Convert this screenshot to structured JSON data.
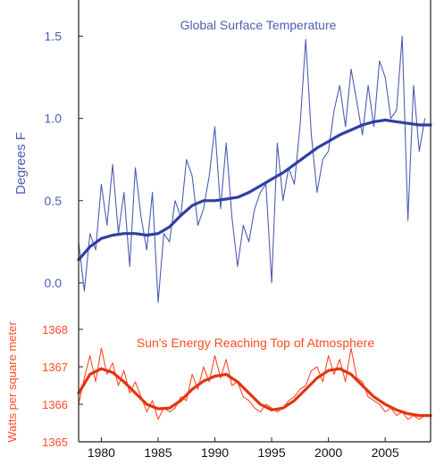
{
  "colors": {
    "temperature": "#4d5db3",
    "temperature_smooth": "#2f3fa2",
    "solar": "#ff4a24",
    "solar_smooth": "#e23412",
    "axis": "#222222",
    "background": "#ffffff"
  },
  "chart_data": [
    {
      "type": "line",
      "title": "Global Surface Temperature",
      "ylabel": "Degrees F",
      "xlim": [
        1978,
        2009
      ],
      "ylim": [
        -0.25,
        1.72
      ],
      "yticks": [
        0.0,
        0.5,
        1.0,
        1.5
      ],
      "ytick_labels": [
        "0.0",
        "0.5",
        "1.0",
        "1.5"
      ],
      "grid": false,
      "series": [
        {
          "role": "monthly",
          "x": [
            1978.0,
            1978.5,
            1979.0,
            1979.5,
            1980.0,
            1980.5,
            1981.0,
            1981.5,
            1982.0,
            1982.5,
            1983.0,
            1983.5,
            1984.0,
            1984.5,
            1985.0,
            1985.5,
            1986.0,
            1986.5,
            1987.0,
            1987.5,
            1988.0,
            1988.5,
            1989.0,
            1989.5,
            1990.0,
            1990.5,
            1991.0,
            1991.5,
            1992.0,
            1992.5,
            1993.0,
            1993.5,
            1994.0,
            1994.5,
            1995.0,
            1995.5,
            1996.0,
            1996.5,
            1997.0,
            1997.5,
            1998.0,
            1998.5,
            1999.0,
            1999.5,
            2000.0,
            2000.5,
            2001.0,
            2001.5,
            2002.0,
            2002.5,
            2003.0,
            2003.5,
            2004.0,
            2004.5,
            2005.0,
            2005.5,
            2006.0,
            2006.5,
            2007.0,
            2007.5,
            2008.0,
            2008.5
          ],
          "y": [
            0.25,
            -0.05,
            0.3,
            0.2,
            0.6,
            0.35,
            0.72,
            0.3,
            0.55,
            0.1,
            0.7,
            0.4,
            0.2,
            0.55,
            -0.12,
            0.3,
            0.25,
            0.5,
            0.4,
            0.75,
            0.65,
            0.35,
            0.45,
            0.65,
            0.95,
            0.45,
            0.85,
            0.4,
            0.1,
            0.35,
            0.25,
            0.45,
            0.55,
            0.6,
            0.0,
            0.85,
            0.5,
            0.7,
            0.6,
            0.95,
            1.48,
            0.9,
            0.55,
            0.75,
            0.8,
            1.05,
            1.2,
            0.95,
            1.3,
            1.1,
            0.9,
            1.2,
            0.95,
            1.35,
            1.25,
            1.0,
            1.05,
            1.5,
            0.38,
            1.2,
            0.8,
            1.0
          ]
        },
        {
          "role": "smoothed",
          "x": [
            1978,
            1979,
            1980,
            1981,
            1982,
            1983,
            1984,
            1985,
            1986,
            1987,
            1988,
            1989,
            1990,
            1991,
            1992,
            1993,
            1994,
            1995,
            1996,
            1997,
            1998,
            1999,
            2000,
            2001,
            2002,
            2003,
            2004,
            2005,
            2006,
            2007,
            2008,
            2009
          ],
          "y": [
            0.14,
            0.22,
            0.27,
            0.29,
            0.3,
            0.3,
            0.29,
            0.3,
            0.34,
            0.41,
            0.47,
            0.5,
            0.5,
            0.51,
            0.52,
            0.55,
            0.59,
            0.63,
            0.67,
            0.72,
            0.77,
            0.82,
            0.86,
            0.9,
            0.93,
            0.96,
            0.98,
            0.99,
            0.98,
            0.97,
            0.96,
            0.96
          ]
        }
      ]
    },
    {
      "type": "line",
      "title": "Sun's Energy Reaching Top of Atmosphere",
      "ylabel": "Watts per square meter",
      "xlabel": "",
      "xlim": [
        1978,
        2009
      ],
      "ylim": [
        1365,
        1368
      ],
      "yticks": [
        1365,
        1366,
        1367,
        1368
      ],
      "ytick_labels": [
        "1365",
        "1366",
        "1367",
        "1368"
      ],
      "xticks": [
        1980,
        1985,
        1990,
        1995,
        2000,
        2005
      ],
      "xtick_labels": [
        "1980",
        "1985",
        "1990",
        "1995",
        "2000",
        "2005"
      ],
      "grid": false,
      "series": [
        {
          "role": "monthly",
          "x": [
            1978.0,
            1978.5,
            1979.0,
            1979.5,
            1980.0,
            1980.5,
            1981.0,
            1981.5,
            1982.0,
            1982.5,
            1983.0,
            1983.5,
            1984.0,
            1984.5,
            1985.0,
            1985.5,
            1986.0,
            1986.5,
            1987.0,
            1987.5,
            1988.0,
            1988.5,
            1989.0,
            1989.5,
            1990.0,
            1990.5,
            1991.0,
            1991.5,
            1992.0,
            1992.5,
            1993.0,
            1993.5,
            1994.0,
            1994.5,
            1995.0,
            1995.5,
            1996.0,
            1996.5,
            1997.0,
            1997.5,
            1998.0,
            1998.5,
            1999.0,
            1999.5,
            2000.0,
            2000.5,
            2001.0,
            2001.5,
            2002.0,
            2002.5,
            2003.0,
            2003.5,
            2004.0,
            2004.5,
            2005.0,
            2005.5,
            2006.0,
            2006.5,
            2007.0,
            2007.5,
            2008.0,
            2008.5
          ],
          "y": [
            1366.0,
            1366.7,
            1367.3,
            1366.6,
            1367.5,
            1366.8,
            1367.1,
            1366.5,
            1366.9,
            1366.3,
            1366.6,
            1366.2,
            1365.8,
            1366.1,
            1365.6,
            1365.9,
            1365.8,
            1365.9,
            1366.2,
            1366.1,
            1366.8,
            1366.4,
            1367.0,
            1366.6,
            1367.3,
            1366.7,
            1367.2,
            1366.5,
            1366.6,
            1366.2,
            1366.1,
            1365.9,
            1365.8,
            1366.0,
            1365.9,
            1365.8,
            1365.9,
            1366.1,
            1366.2,
            1366.4,
            1366.5,
            1366.9,
            1367.0,
            1366.6,
            1367.3,
            1366.8,
            1367.2,
            1366.6,
            1367.5,
            1366.7,
            1366.6,
            1366.2,
            1366.1,
            1366.0,
            1365.8,
            1365.9,
            1365.7,
            1365.8,
            1365.6,
            1365.7,
            1365.6,
            1365.7
          ]
        },
        {
          "role": "smoothed",
          "x": [
            1978,
            1979,
            1980,
            1981,
            1982,
            1983,
            1984,
            1985,
            1986,
            1987,
            1988,
            1989,
            1990,
            1991,
            1992,
            1993,
            1994,
            1995,
            1996,
            1997,
            1998,
            1999,
            2000,
            2001,
            2002,
            2003,
            2004,
            2005,
            2006,
            2007,
            2008,
            2009
          ],
          "y": [
            1366.3,
            1366.8,
            1366.95,
            1366.85,
            1366.6,
            1366.3,
            1366.0,
            1365.88,
            1365.9,
            1366.1,
            1366.4,
            1366.62,
            1366.75,
            1366.8,
            1366.6,
            1366.3,
            1366.0,
            1365.85,
            1365.9,
            1366.1,
            1366.4,
            1366.7,
            1366.9,
            1366.95,
            1366.8,
            1366.5,
            1366.2,
            1366.0,
            1365.85,
            1365.75,
            1365.7,
            1365.7
          ]
        }
      ]
    }
  ]
}
